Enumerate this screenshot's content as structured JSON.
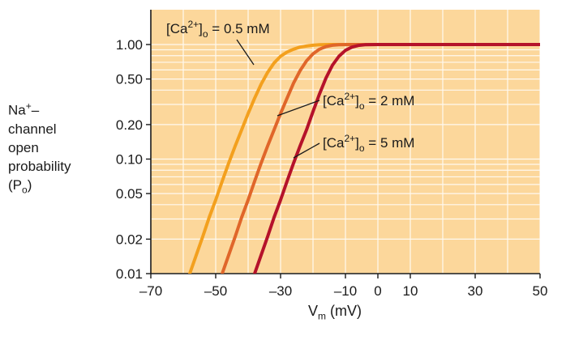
{
  "chart_data": {
    "type": "line",
    "y_label": {
      "lines": [
        {
          "main": "Na",
          "sup": "+",
          "tail": "–"
        },
        {
          "main": "channel"
        },
        {
          "main": "open"
        },
        {
          "main": "probability"
        },
        {
          "main": "(P",
          "sub": "o",
          "tail": ")"
        }
      ]
    },
    "x_label": {
      "main": "V",
      "sub": "m",
      "tail": " (mV)"
    },
    "x_ticks": [
      -70,
      -50,
      -30,
      -10,
      0,
      10,
      30,
      50
    ],
    "x_tick_labels": [
      "–70",
      "–50",
      "–30",
      "–10",
      "0",
      "10",
      "30",
      "50"
    ],
    "y_ticks": [
      0.01,
      0.02,
      0.05,
      0.1,
      0.2,
      0.5,
      1.0
    ],
    "y_tick_labels": [
      "0.01",
      "0.02",
      "0.05",
      "0.10",
      "0.20",
      "0.50",
      "1.00"
    ],
    "xlim": [
      -70,
      50
    ],
    "ylim": [
      0.01,
      1.0
    ],
    "y_scale": "log",
    "grid": true,
    "background_color": "#FCD79B",
    "series": [
      {
        "name": "[Ca2+]o = 0.5 mM",
        "label_parts": {
          "pre": "[Ca",
          "sup": "2+",
          "mid": "]",
          "sub": "o",
          "post": " = 0.5 mM"
        },
        "color": "#F3A01E",
        "x": [
          -58,
          -56,
          -54,
          -52,
          -50,
          -48,
          -46,
          -44,
          -42,
          -40,
          -38,
          -36,
          -34,
          -32,
          -30,
          -28,
          -26,
          -24,
          -22,
          -20,
          -18,
          -15,
          -10,
          0,
          10,
          30,
          50
        ],
        "y": [
          0.01,
          0.0145,
          0.021,
          0.031,
          0.044,
          0.064,
          0.092,
          0.13,
          0.18,
          0.25,
          0.34,
          0.45,
          0.57,
          0.69,
          0.79,
          0.86,
          0.91,
          0.95,
          0.97,
          0.985,
          0.995,
          1.0,
          1.0,
          1.0,
          1.0,
          1.0,
          1.0
        ]
      },
      {
        "name": "[Ca2+]o = 2 mM",
        "label_parts": {
          "pre": "[Ca",
          "sup": "2+",
          "mid": "]",
          "sub": "o",
          "post": " = 2 mM"
        },
        "color": "#E0662A",
        "x": [
          -48,
          -46,
          -44,
          -42,
          -40,
          -38,
          -36,
          -34,
          -32,
          -30,
          -28,
          -26,
          -24,
          -22,
          -20,
          -18,
          -16,
          -14,
          -12,
          -8,
          0,
          10,
          30,
          50
        ],
        "y": [
          0.01,
          0.0145,
          0.021,
          0.031,
          0.044,
          0.064,
          0.092,
          0.13,
          0.18,
          0.25,
          0.34,
          0.46,
          0.59,
          0.72,
          0.83,
          0.91,
          0.96,
          0.985,
          0.995,
          1.0,
          1.0,
          1.0,
          1.0,
          1.0
        ]
      },
      {
        "name": "[Ca2+]o = 5 mM",
        "label_parts": {
          "pre": "[Ca",
          "sup": "2+",
          "mid": "]",
          "sub": "o",
          "post": " = 5 mM"
        },
        "color": "#B5122A",
        "x": [
          -38,
          -36,
          -34,
          -32,
          -30,
          -28,
          -26,
          -24,
          -22,
          -20,
          -18,
          -16,
          -14,
          -12,
          -10,
          -8,
          -6,
          -4,
          0,
          10,
          30,
          50
        ],
        "y": [
          0.01,
          0.0145,
          0.021,
          0.031,
          0.044,
          0.064,
          0.092,
          0.13,
          0.18,
          0.26,
          0.37,
          0.51,
          0.66,
          0.79,
          0.89,
          0.95,
          0.98,
          0.995,
          1.0,
          1.0,
          1.0,
          1.0
        ]
      }
    ]
  }
}
